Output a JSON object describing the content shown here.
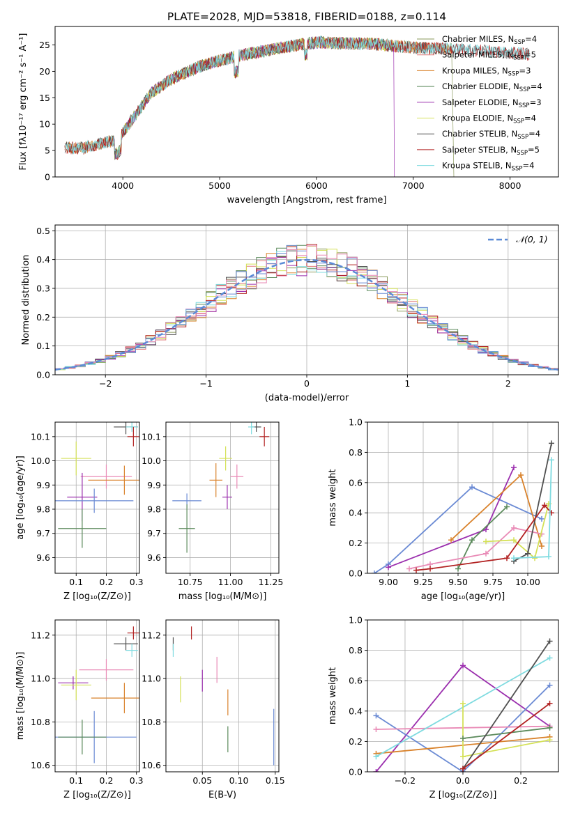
{
  "figure": {
    "title": "PLATE=2028, MJD=53818, FIBERID=0188, z=0.114"
  },
  "colors": {
    "chabrier_miles": "#8a9a5b",
    "salpeter_miles": "#e07878",
    "kroupa_miles": "#d9822b",
    "chabrier_elodie": "#5b8a5b",
    "salpeter_elodie": "#9b2fae",
    "kroupa_elodie": "#d4e157",
    "chabrier_stelib": "#505050",
    "salpeter_stelib": "#b22222",
    "kroupa_stelib": "#7fdbe0",
    "blue": "#6a8ad4",
    "pink": "#e98ab6"
  },
  "chart_data": [
    {
      "id": "spectrum",
      "type": "line",
      "xlabel": "wavelength [Angstrom, rest frame]",
      "ylabel": "Flux [fλ10⁻¹⁷ erg cm⁻² s⁻¹ A⁻¹]",
      "xlim": [
        3300,
        8500
      ],
      "ylim": [
        0,
        28.5
      ],
      "xticks": [
        "4000",
        "5000",
        "6000",
        "7000",
        "8000"
      ],
      "xtick_values": [
        4000,
        5000,
        6000,
        7000,
        8000
      ],
      "yticks": [
        "0",
        "5",
        "10",
        "15",
        "20",
        "25"
      ],
      "ytick_values": [
        0,
        5,
        10,
        15,
        20,
        25
      ],
      "grid": false,
      "legend_position": "top-right",
      "series": [
        {
          "name": "Chabrier MILES, N",
          "sub": "SSP",
          "suffix": "=4",
          "color": "#8a9a5b",
          "range": [
            3400,
            7400
          ]
        },
        {
          "name": "Salpeter MILES, N",
          "sub": "SSP",
          "suffix": "=5",
          "color": "#e07878",
          "range": [
            3400,
            7400
          ]
        },
        {
          "name": "Kroupa MILES, N",
          "sub": "SSP",
          "suffix": "=3",
          "color": "#d9822b",
          "range": [
            3400,
            7400
          ]
        },
        {
          "name": "Chabrier ELODIE, N",
          "sub": "SSP",
          "suffix": "=4",
          "color": "#5b8a5b",
          "range": [
            3900,
            6800
          ]
        },
        {
          "name": "Salpeter ELODIE, N",
          "sub": "SSP",
          "suffix": "=3",
          "color": "#9b2fae",
          "range": [
            3900,
            6800
          ]
        },
        {
          "name": "Kroupa ELODIE, N",
          "sub": "SSP",
          "suffix": "=4",
          "color": "#d4e157",
          "range": [
            3900,
            6800
          ]
        },
        {
          "name": "Chabrier STELIB, N",
          "sub": "SSP",
          "suffix": "=4",
          "color": "#505050",
          "range": [
            3400,
            8200
          ]
        },
        {
          "name": "Salpeter STELIB, N",
          "sub": "SSP",
          "suffix": "=5",
          "color": "#b22222",
          "range": [
            3400,
            8200
          ]
        },
        {
          "name": "Kroupa STELIB, N",
          "sub": "SSP",
          "suffix": "=4",
          "color": "#7fdbe0",
          "range": [
            3400,
            8200
          ]
        }
      ],
      "continuum": {
        "wavelength": [
          3400,
          3600,
          3800,
          3950,
          4100,
          4300,
          4500,
          4800,
          5000,
          5200,
          5500,
          5800,
          6000,
          6300,
          6600,
          6800,
          7000,
          7300,
          7600,
          8000,
          8200
        ],
        "flux": [
          5.5,
          5.5,
          6.5,
          7,
          11,
          16,
          18.5,
          21,
          22,
          23,
          24,
          25,
          25.5,
          25.3,
          25.2,
          24.8,
          24.5,
          24.3,
          24,
          23.5,
          23.2
        ]
      }
    },
    {
      "id": "residuals",
      "type": "bar",
      "xlabel": "(data-model)/error",
      "ylabel": "Normed distribution",
      "xlim": [
        -2.5,
        2.5
      ],
      "ylim": [
        0,
        0.52
      ],
      "xticks": [
        "−2",
        "−1",
        "0",
        "1",
        "2"
      ],
      "xtick_values": [
        -2,
        -1,
        0,
        1,
        2
      ],
      "yticks": [
        "0.0",
        "0.1",
        "0.2",
        "0.3",
        "0.4",
        "0.5"
      ],
      "ytick_values": [
        0,
        0.1,
        0.2,
        0.3,
        0.4,
        0.5
      ],
      "grid": true,
      "legend_position": "top-right",
      "legend_label": "𝒩(0, 1)",
      "normal_curve": {
        "mean": 0,
        "sigma": 1,
        "color": "#5b8ad6"
      },
      "histogram": {
        "bin_width": 0.1,
        "x_start": -2.5,
        "bins": 50,
        "series_count": 9
      }
    },
    {
      "id": "z-age",
      "type": "errorbar",
      "xlabel": "Z [log₁₀(Z/Z⊙)]",
      "ylabel": "age  [log₁₀(age/yr)]",
      "xlim": [
        0.03,
        0.31
      ],
      "ylim": [
        9.535,
        10.16
      ],
      "xticks": [
        "0.1",
        "0.2",
        "0.3"
      ],
      "xtick_values": [
        0.1,
        0.2,
        0.3
      ],
      "yticks": [
        "9.6",
        "9.7",
        "9.8",
        "9.9",
        "10.0",
        "10.1"
      ],
      "ytick_values": [
        9.6,
        9.7,
        9.8,
        9.9,
        10.0,
        10.1
      ],
      "grid": true,
      "points": [
        {
          "x": 0.265,
          "y": 10.14,
          "xerr": 0.04,
          "yerr": 0.03,
          "color": "#505050"
        },
        {
          "x": 0.285,
          "y": 10.14,
          "xerr": 0.02,
          "yerr": 0.02,
          "color": "#7fdbe0"
        },
        {
          "x": 0.29,
          "y": 10.1,
          "xerr": 0.02,
          "yerr": 0.04,
          "color": "#b22222"
        },
        {
          "x": 0.1,
          "y": 10.01,
          "xerr": 0.05,
          "yerr": 0.07,
          "color": "#d4e157"
        },
        {
          "x": 0.2,
          "y": 9.935,
          "xerr": 0.085,
          "yerr": 0.05,
          "color": "#e98ab6"
        },
        {
          "x": 0.26,
          "y": 9.92,
          "xerr": 0.12,
          "yerr": 0.06,
          "color": "#d9822b"
        },
        {
          "x": 0.12,
          "y": 9.85,
          "xerr": 0.05,
          "yerr": 0.1,
          "color": "#9b2fae"
        },
        {
          "x": 0.16,
          "y": 9.835,
          "xerr": 0.13,
          "yerr": 0.05,
          "color": "#6a8ad4"
        },
        {
          "x": 0.12,
          "y": 9.72,
          "xerr": 0.08,
          "yerr": 0.08,
          "color": "#5b8a5b"
        }
      ]
    },
    {
      "id": "mass-age",
      "type": "errorbar",
      "xlabel": "mass [log₁₀(M/M⊙)]",
      "xlim": [
        10.6,
        11.3
      ],
      "ylim": [
        9.535,
        10.16
      ],
      "xticks": [
        "10.75",
        "11.00",
        "11.25"
      ],
      "xtick_values": [
        10.75,
        11.0,
        11.25
      ],
      "yticks": [
        "9.6",
        "9.7",
        "9.8",
        "9.9",
        "10.0",
        "10.1"
      ],
      "ytick_values": [
        9.6,
        9.7,
        9.8,
        9.9,
        10.0,
        10.1
      ],
      "grid": true,
      "points": [
        {
          "x": 11.16,
          "y": 10.14,
          "xerr": 0.03,
          "yerr": 0.02,
          "color": "#505050"
        },
        {
          "x": 11.13,
          "y": 10.14,
          "xerr": 0.02,
          "yerr": 0.03,
          "color": "#7fdbe0"
        },
        {
          "x": 11.21,
          "y": 10.1,
          "xerr": 0.03,
          "yerr": 0.04,
          "color": "#b22222"
        },
        {
          "x": 10.97,
          "y": 10.01,
          "xerr": 0.04,
          "yerr": 0.05,
          "color": "#d4e157"
        },
        {
          "x": 11.04,
          "y": 9.935,
          "xerr": 0.04,
          "yerr": 0.05,
          "color": "#e98ab6"
        },
        {
          "x": 10.91,
          "y": 9.92,
          "xerr": 0.04,
          "yerr": 0.07,
          "color": "#d9822b"
        },
        {
          "x": 10.98,
          "y": 9.85,
          "xerr": 0.03,
          "yerr": 0.05,
          "color": "#9b2fae"
        },
        {
          "x": 10.73,
          "y": 9.835,
          "xerr": 0.09,
          "yerr": 0.03,
          "color": "#6a8ad4"
        },
        {
          "x": 10.73,
          "y": 9.72,
          "xerr": 0.05,
          "yerr": 0.1,
          "color": "#5b8a5b"
        }
      ]
    },
    {
      "id": "age-weight",
      "type": "line",
      "xlabel": "age  [log₁₀(age/yr)]",
      "ylabel": "mass weight",
      "xlim": [
        8.85,
        10.22
      ],
      "ylim": [
        0,
        1
      ],
      "xticks": [
        "9.00",
        "9.25",
        "9.50",
        "9.75",
        "10.00"
      ],
      "xtick_values": [
        9.0,
        9.25,
        9.5,
        9.75,
        10.0
      ],
      "yticks": [
        "0.0",
        "0.2",
        "0.4",
        "0.6",
        "0.8",
        "1.0"
      ],
      "ytick_values": [
        0,
        0.2,
        0.4,
        0.6,
        0.8,
        1.0
      ],
      "grid": true,
      "series": [
        {
          "color": "#6a8ad4",
          "x": [
            8.9,
            9.0,
            9.6,
            10.1
          ],
          "y": [
            0.0,
            0.06,
            0.57,
            0.36
          ]
        },
        {
          "color": "#9b2fae",
          "x": [
            9.0,
            9.7,
            9.9
          ],
          "y": [
            0.04,
            0.29,
            0.7
          ]
        },
        {
          "color": "#d9822b",
          "x": [
            9.45,
            9.95,
            10.1
          ],
          "y": [
            0.22,
            0.65,
            0.18
          ]
        },
        {
          "color": "#5b8a5b",
          "x": [
            9.5,
            9.6,
            9.85
          ],
          "y": [
            0.03,
            0.22,
            0.44
          ]
        },
        {
          "color": "#e98ab6",
          "x": [
            9.15,
            9.3,
            9.7,
            9.9,
            10.1
          ],
          "y": [
            0.03,
            0.06,
            0.13,
            0.3,
            0.26
          ]
        },
        {
          "color": "#d4e157",
          "x": [
            9.7,
            9.9,
            10.05,
            10.15
          ],
          "y": [
            0.21,
            0.22,
            0.1,
            0.46
          ]
        },
        {
          "color": "#505050",
          "x": [
            9.9,
            10.0,
            10.17
          ],
          "y": [
            0.08,
            0.13,
            0.86
          ]
        },
        {
          "color": "#b22222",
          "x": [
            9.2,
            9.3,
            9.85,
            10.12,
            10.17
          ],
          "y": [
            0.02,
            0.03,
            0.1,
            0.45,
            0.4
          ]
        },
        {
          "color": "#7fdbe0",
          "x": [
            9.9,
            10.15,
            10.17
          ],
          "y": [
            0.1,
            0.11,
            0.75
          ]
        }
      ]
    },
    {
      "id": "z-mass",
      "type": "errorbar",
      "xlabel": "Z [log₁₀(Z/Z⊙)]",
      "ylabel": "mass [log₁₀(M/M⊙)]",
      "xlim": [
        0.03,
        0.31
      ],
      "ylim": [
        10.57,
        11.27
      ],
      "xticks": [
        "0.1",
        "0.2",
        "0.3"
      ],
      "xtick_values": [
        0.1,
        0.2,
        0.3
      ],
      "yticks": [
        "10.6",
        "10.8",
        "11.0",
        "11.2"
      ],
      "ytick_values": [
        10.6,
        10.8,
        11.0,
        11.2
      ],
      "grid": true,
      "points": [
        {
          "x": 0.29,
          "y": 11.21,
          "xerr": 0.02,
          "yerr": 0.03,
          "color": "#b22222"
        },
        {
          "x": 0.265,
          "y": 11.16,
          "xerr": 0.04,
          "yerr": 0.03,
          "color": "#505050"
        },
        {
          "x": 0.285,
          "y": 11.13,
          "xerr": 0.02,
          "yerr": 0.03,
          "color": "#7fdbe0"
        },
        {
          "x": 0.2,
          "y": 11.04,
          "xerr": 0.09,
          "yerr": 0.05,
          "color": "#e98ab6"
        },
        {
          "x": 0.09,
          "y": 10.98,
          "xerr": 0.05,
          "yerr": 0.03,
          "color": "#9b2fae"
        },
        {
          "x": 0.1,
          "y": 10.97,
          "xerr": 0.05,
          "yerr": 0.07,
          "color": "#d4e157"
        },
        {
          "x": 0.26,
          "y": 10.91,
          "xerr": 0.11,
          "yerr": 0.07,
          "color": "#d9822b"
        },
        {
          "x": 0.16,
          "y": 10.73,
          "xerr": 0.14,
          "yerr": 0.12,
          "color": "#6a8ad4"
        },
        {
          "x": 0.12,
          "y": 10.73,
          "xerr": 0.08,
          "yerr": 0.08,
          "color": "#5b8a5b"
        }
      ]
    },
    {
      "id": "ebv-mass",
      "type": "errorbar",
      "xlabel": "E(B-V)",
      "xlim": [
        0.0,
        0.155
      ],
      "ylim": [
        10.57,
        11.27
      ],
      "xticks": [
        "0.05",
        "0.10",
        "0.15"
      ],
      "xtick_values": [
        0.05,
        0.1,
        0.15
      ],
      "yticks": [
        "10.6",
        "10.8",
        "11.0",
        "11.2"
      ],
      "ytick_values": [
        10.6,
        10.8,
        11.0,
        11.2
      ],
      "grid": true,
      "points": [
        {
          "x": 0.035,
          "y": 11.21,
          "xerr": 0,
          "yerr": 0.03,
          "color": "#b22222"
        },
        {
          "x": 0.01,
          "y": 11.16,
          "xerr": 0,
          "yerr": 0.03,
          "color": "#505050"
        },
        {
          "x": 0.01,
          "y": 11.13,
          "xerr": 0,
          "yerr": 0.03,
          "color": "#7fdbe0"
        },
        {
          "x": 0.07,
          "y": 11.04,
          "xerr": 0,
          "yerr": 0.06,
          "color": "#e98ab6"
        },
        {
          "x": 0.05,
          "y": 10.99,
          "xerr": 0,
          "yerr": 0.05,
          "color": "#9b2fae"
        },
        {
          "x": 0.02,
          "y": 10.95,
          "xerr": 0,
          "yerr": 0.06,
          "color": "#d4e157"
        },
        {
          "x": 0.085,
          "y": 10.89,
          "xerr": 0,
          "yerr": 0.06,
          "color": "#d9822b"
        },
        {
          "x": 0.148,
          "y": 10.73,
          "xerr": 0,
          "yerr": 0.13,
          "color": "#6a8ad4"
        },
        {
          "x": 0.085,
          "y": 10.72,
          "xerr": 0,
          "yerr": 0.06,
          "color": "#5b8a5b"
        }
      ]
    },
    {
      "id": "z-weight",
      "type": "line",
      "xlabel": "Z [log₁₀(Z/Z⊙)]",
      "ylabel": "mass weight",
      "xlim": [
        -0.33,
        0.33
      ],
      "ylim": [
        0,
        1
      ],
      "xticks": [
        "−0.2",
        "0.0",
        "0.2"
      ],
      "xtick_values": [
        -0.2,
        0.0,
        0.2
      ],
      "yticks": [
        "0.0",
        "0.2",
        "0.4",
        "0.6",
        "0.8",
        "1.0"
      ],
      "ytick_values": [
        0,
        0.2,
        0.4,
        0.6,
        0.8,
        1.0
      ],
      "grid": true,
      "series": [
        {
          "color": "#9b2fae",
          "x": [
            -0.3,
            0.0,
            0.3
          ],
          "y": [
            0.0,
            0.7,
            0.3
          ]
        },
        {
          "color": "#6a8ad4",
          "x": [
            -0.3,
            0.0,
            0.3
          ],
          "y": [
            0.37,
            0.0,
            0.57
          ]
        },
        {
          "color": "#e98ab6",
          "x": [
            -0.3,
            0.3
          ],
          "y": [
            0.28,
            0.3
          ]
        },
        {
          "color": "#d9822b",
          "x": [
            -0.3,
            0.3
          ],
          "y": [
            0.12,
            0.23
          ]
        },
        {
          "color": "#7fdbe0",
          "x": [
            -0.3,
            0.3
          ],
          "y": [
            0.1,
            0.75
          ]
        },
        {
          "color": "#d4e157",
          "x": [
            0.0,
            0.0,
            0.3
          ],
          "y": [
            0.45,
            0.1,
            0.21
          ]
        },
        {
          "color": "#5b8a5b",
          "x": [
            0.0,
            0.3
          ],
          "y": [
            0.22,
            0.29
          ]
        },
        {
          "color": "#505050",
          "x": [
            0.0,
            0.3
          ],
          "y": [
            0.02,
            0.86
          ]
        },
        {
          "color": "#b22222",
          "x": [
            0.0,
            0.3
          ],
          "y": [
            0.02,
            0.45
          ]
        }
      ]
    }
  ]
}
